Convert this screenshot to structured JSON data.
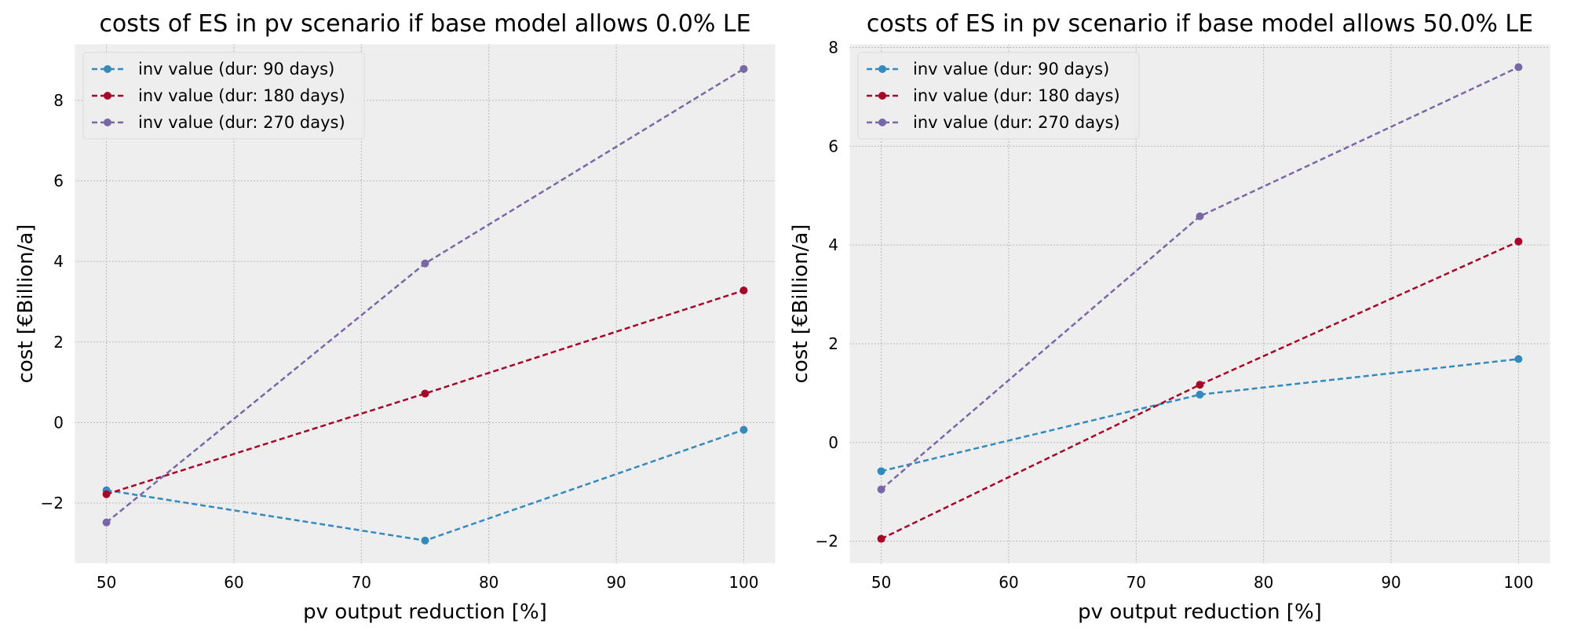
{
  "chart_data": [
    {
      "type": "line",
      "title": "costs of ES in pv scenario if base model allows 0.0% LE",
      "xlabel": "pv output reduction [%]",
      "ylabel": "cost [€Billion/a]",
      "xlim": [
        47.5,
        102.5
      ],
      "ylim": [
        -3.5,
        9.4
      ],
      "xticks": [
        50,
        60,
        70,
        80,
        90,
        100
      ],
      "yticks": [
        -2,
        0,
        2,
        4,
        6,
        8
      ],
      "ytick_labels": [
        "−2",
        "0",
        "2",
        "4",
        "6",
        "8"
      ],
      "grid": true,
      "legend_position": "upper-left",
      "x": [
        50,
        75,
        100
      ],
      "series": [
        {
          "name": "inv value (dur: 90 days)",
          "color": "#348ABD",
          "values": [
            -1.68,
            -2.93,
            -0.18
          ]
        },
        {
          "name": "inv value (dur: 180 days)",
          "color": "#A60628",
          "values": [
            -1.78,
            0.72,
            3.28
          ]
        },
        {
          "name": "inv value (dur: 270 days)",
          "color": "#7A68A6",
          "values": [
            -2.48,
            3.95,
            8.78
          ]
        }
      ]
    },
    {
      "type": "line",
      "title": "costs of ES in pv scenario if base model allows 50.0% LE",
      "xlabel": "pv output reduction [%]",
      "ylabel": "cost [€Billion/a]",
      "xlim": [
        47.5,
        102.5
      ],
      "ylim": [
        -2.45,
        8.07
      ],
      "xticks": [
        50,
        60,
        70,
        80,
        90,
        100
      ],
      "yticks": [
        -2,
        0,
        2,
        4,
        6,
        8
      ],
      "ytick_labels": [
        "−2",
        "0",
        "2",
        "4",
        "6",
        "8"
      ],
      "grid": true,
      "legend_position": "upper-left",
      "x": [
        50,
        75,
        100
      ],
      "series": [
        {
          "name": "inv value (dur: 90 days)",
          "color": "#348ABD",
          "values": [
            -0.58,
            0.97,
            1.69
          ]
        },
        {
          "name": "inv value (dur: 180 days)",
          "color": "#A60628",
          "values": [
            -1.95,
            1.17,
            4.07
          ]
        },
        {
          "name": "inv value (dur: 270 days)",
          "color": "#7A68A6",
          "values": [
            -0.95,
            4.58,
            7.6
          ]
        }
      ]
    }
  ]
}
